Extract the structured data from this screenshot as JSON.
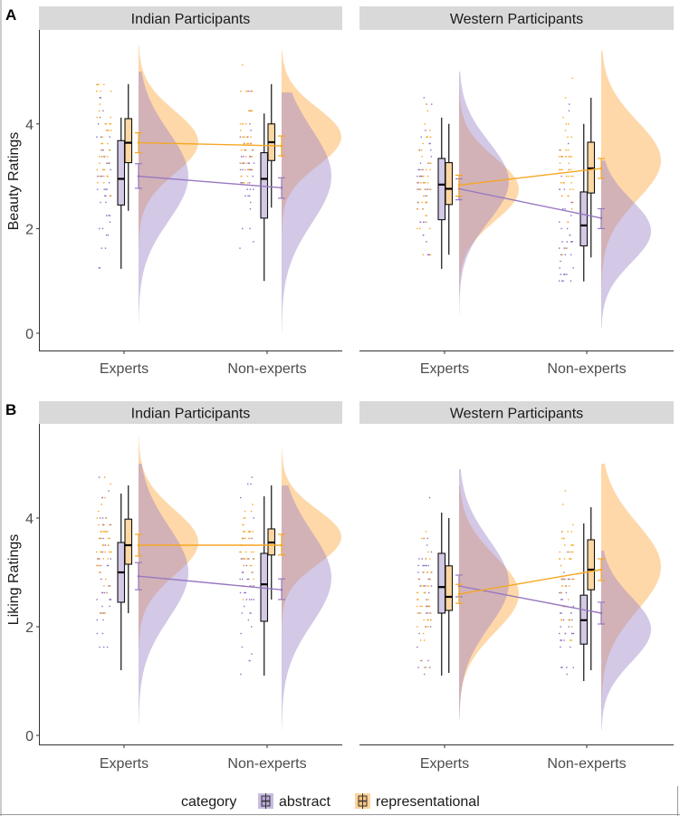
{
  "colors": {
    "abstract": "#9E86C8",
    "representational": "#FDB863",
    "strip": "#D9D9D9",
    "abstract_line": "#9878C0",
    "representational_line": "#F5A623"
  },
  "legend": {
    "title": "category",
    "items": [
      "abstract",
      "representational"
    ]
  },
  "chart_data": [
    {
      "type": "raincloud",
      "panel_label": "A",
      "ylabel": "Beauty Ratings",
      "yticks": [
        0,
        2,
        4
      ],
      "ylim": [
        -0.3,
        5.6
      ],
      "categories": [
        "Experts",
        "Non-experts"
      ],
      "facets": [
        {
          "title": "Indian Participants",
          "groups": [
            {
              "abstract": {
                "whisker_low": 1.23,
                "q1": 2.45,
                "median": 2.95,
                "q3": 3.68,
                "whisker_high": 4.12,
                "mean": 3.0,
                "ci": [
                  2.77,
                  3.24
                ],
                "density_mode": 3.0,
                "density_sd": 0.85,
                "density_range": [
                  0.2,
                  5.0
                ]
              },
              "representational": {
                "whisker_low": 2.34,
                "q1": 3.26,
                "median": 3.64,
                "q3": 4.1,
                "whisker_high": 4.76,
                "mean": 3.64,
                "ci": [
                  3.45,
                  3.83
                ],
                "density_mode": 3.65,
                "density_sd": 0.6,
                "density_range": [
                  1.6,
                  5.5
                ]
              }
            },
            {
              "abstract": {
                "whisker_low": 1.0,
                "q1": 2.2,
                "median": 2.95,
                "q3": 3.45,
                "whisker_high": 4.2,
                "mean": 2.78,
                "ci": [
                  2.58,
                  2.97
                ],
                "density_mode": 3.0,
                "density_sd": 0.9,
                "density_range": [
                  0.0,
                  4.6
                ]
              },
              "representational": {
                "whisker_low": 2.4,
                "q1": 3.3,
                "median": 3.65,
                "q3": 4.0,
                "whisker_high": 4.76,
                "mean": 3.58,
                "ci": [
                  3.39,
                  3.77
                ],
                "density_mode": 3.75,
                "density_sd": 0.55,
                "density_range": [
                  1.4,
                  5.4
                ]
              }
            }
          ]
        },
        {
          "title": "Western Participants",
          "groups": [
            {
              "abstract": {
                "whisker_low": 1.23,
                "q1": 2.17,
                "median": 2.84,
                "q3": 3.34,
                "whisker_high": 4.12,
                "mean": 2.76,
                "ci": [
                  2.55,
                  2.95
                ],
                "density_mode": 2.9,
                "density_sd": 0.75,
                "density_range": [
                  0.3,
                  5.0
                ]
              },
              "representational": {
                "whisker_low": 1.5,
                "q1": 2.46,
                "median": 2.76,
                "q3": 3.26,
                "whisker_high": 4.0,
                "mean": 2.83,
                "ci": [
                  2.62,
                  3.02
                ],
                "density_mode": 2.75,
                "density_sd": 0.6,
                "density_range": [
                  0.7,
                  4.7
                ]
              }
            },
            {
              "abstract": {
                "whisker_low": 0.99,
                "q1": 1.67,
                "median": 2.06,
                "q3": 2.7,
                "whisker_high": 4.0,
                "mean": 2.2,
                "ci": [
                  2.0,
                  2.38
                ],
                "density_mode": 1.95,
                "density_sd": 0.6,
                "density_range": [
                  0.1,
                  3.3
                ]
              },
              "representational": {
                "whisker_low": 1.45,
                "q1": 2.68,
                "median": 3.15,
                "q3": 3.65,
                "whisker_high": 4.5,
                "mean": 3.15,
                "ci": [
                  2.96,
                  3.34
                ],
                "density_mode": 3.3,
                "density_sd": 0.75,
                "density_range": [
                  0.5,
                  5.4
                ]
              }
            }
          ]
        }
      ]
    },
    {
      "type": "raincloud",
      "panel_label": "B",
      "ylabel": "Liking Ratings",
      "yticks": [
        0,
        2,
        4
      ],
      "ylim": [
        -0.15,
        5.6
      ],
      "categories": [
        "Experts",
        "Non-experts"
      ],
      "facets": [
        {
          "title": "Indian Participants",
          "groups": [
            {
              "abstract": {
                "whisker_low": 1.2,
                "q1": 2.45,
                "median": 3.0,
                "q3": 3.55,
                "whisker_high": 4.45,
                "mean": 2.93,
                "ci": [
                  2.68,
                  3.18
                ],
                "density_mode": 3.0,
                "density_sd": 0.85,
                "density_range": [
                  0.2,
                  5.0
                ]
              },
              "representational": {
                "whisker_low": 2.25,
                "q1": 3.15,
                "median": 3.5,
                "q3": 3.98,
                "whisker_high": 4.6,
                "mean": 3.5,
                "ci": [
                  3.3,
                  3.7
                ],
                "density_mode": 3.55,
                "density_sd": 0.6,
                "density_range": [
                  1.6,
                  5.5
                ]
              }
            },
            {
              "abstract": {
                "whisker_low": 1.1,
                "q1": 2.1,
                "median": 2.78,
                "q3": 3.35,
                "whisker_high": 4.4,
                "mean": 2.68,
                "ci": [
                  2.5,
                  2.88
                ],
                "density_mode": 2.9,
                "density_sd": 0.85,
                "density_range": [
                  0.1,
                  4.6
                ]
              },
              "representational": {
                "whisker_low": 2.5,
                "q1": 3.32,
                "median": 3.55,
                "q3": 3.8,
                "whisker_high": 4.6,
                "mean": 3.5,
                "ci": [
                  3.32,
                  3.7
                ],
                "density_mode": 3.65,
                "density_sd": 0.5,
                "density_range": [
                  1.6,
                  5.3
                ]
              }
            }
          ]
        },
        {
          "title": "Western Participants",
          "groups": [
            {
              "abstract": {
                "whisker_low": 1.1,
                "q1": 2.25,
                "median": 2.73,
                "q3": 3.35,
                "whisker_high": 4.1,
                "mean": 2.75,
                "ci": [
                  2.55,
                  2.95
                ],
                "density_mode": 2.8,
                "density_sd": 0.8,
                "density_range": [
                  0.3,
                  4.9
                ]
              },
              "representational": {
                "whisker_low": 1.15,
                "q1": 2.3,
                "median": 2.55,
                "q3": 3.12,
                "whisker_high": 4.0,
                "mean": 2.6,
                "ci": [
                  2.43,
                  2.78
                ],
                "density_mode": 2.6,
                "density_sd": 0.7,
                "density_range": [
                  0.3,
                  4.6
                ]
              }
            },
            {
              "abstract": {
                "whisker_low": 1.0,
                "q1": 1.68,
                "median": 2.12,
                "q3": 2.58,
                "whisker_high": 3.9,
                "mean": 2.25,
                "ci": [
                  2.05,
                  2.45
                ],
                "density_mode": 1.95,
                "density_sd": 0.6,
                "density_range": [
                  0.1,
                  3.4
                ]
              },
              "representational": {
                "whisker_low": 1.2,
                "q1": 2.68,
                "median": 3.05,
                "q3": 3.6,
                "whisker_high": 4.2,
                "mean": 3.05,
                "ci": [
                  2.85,
                  3.25
                ],
                "density_mode": 3.1,
                "density_sd": 0.8,
                "density_range": [
                  0.5,
                  5.0
                ]
              }
            }
          ]
        }
      ]
    }
  ]
}
